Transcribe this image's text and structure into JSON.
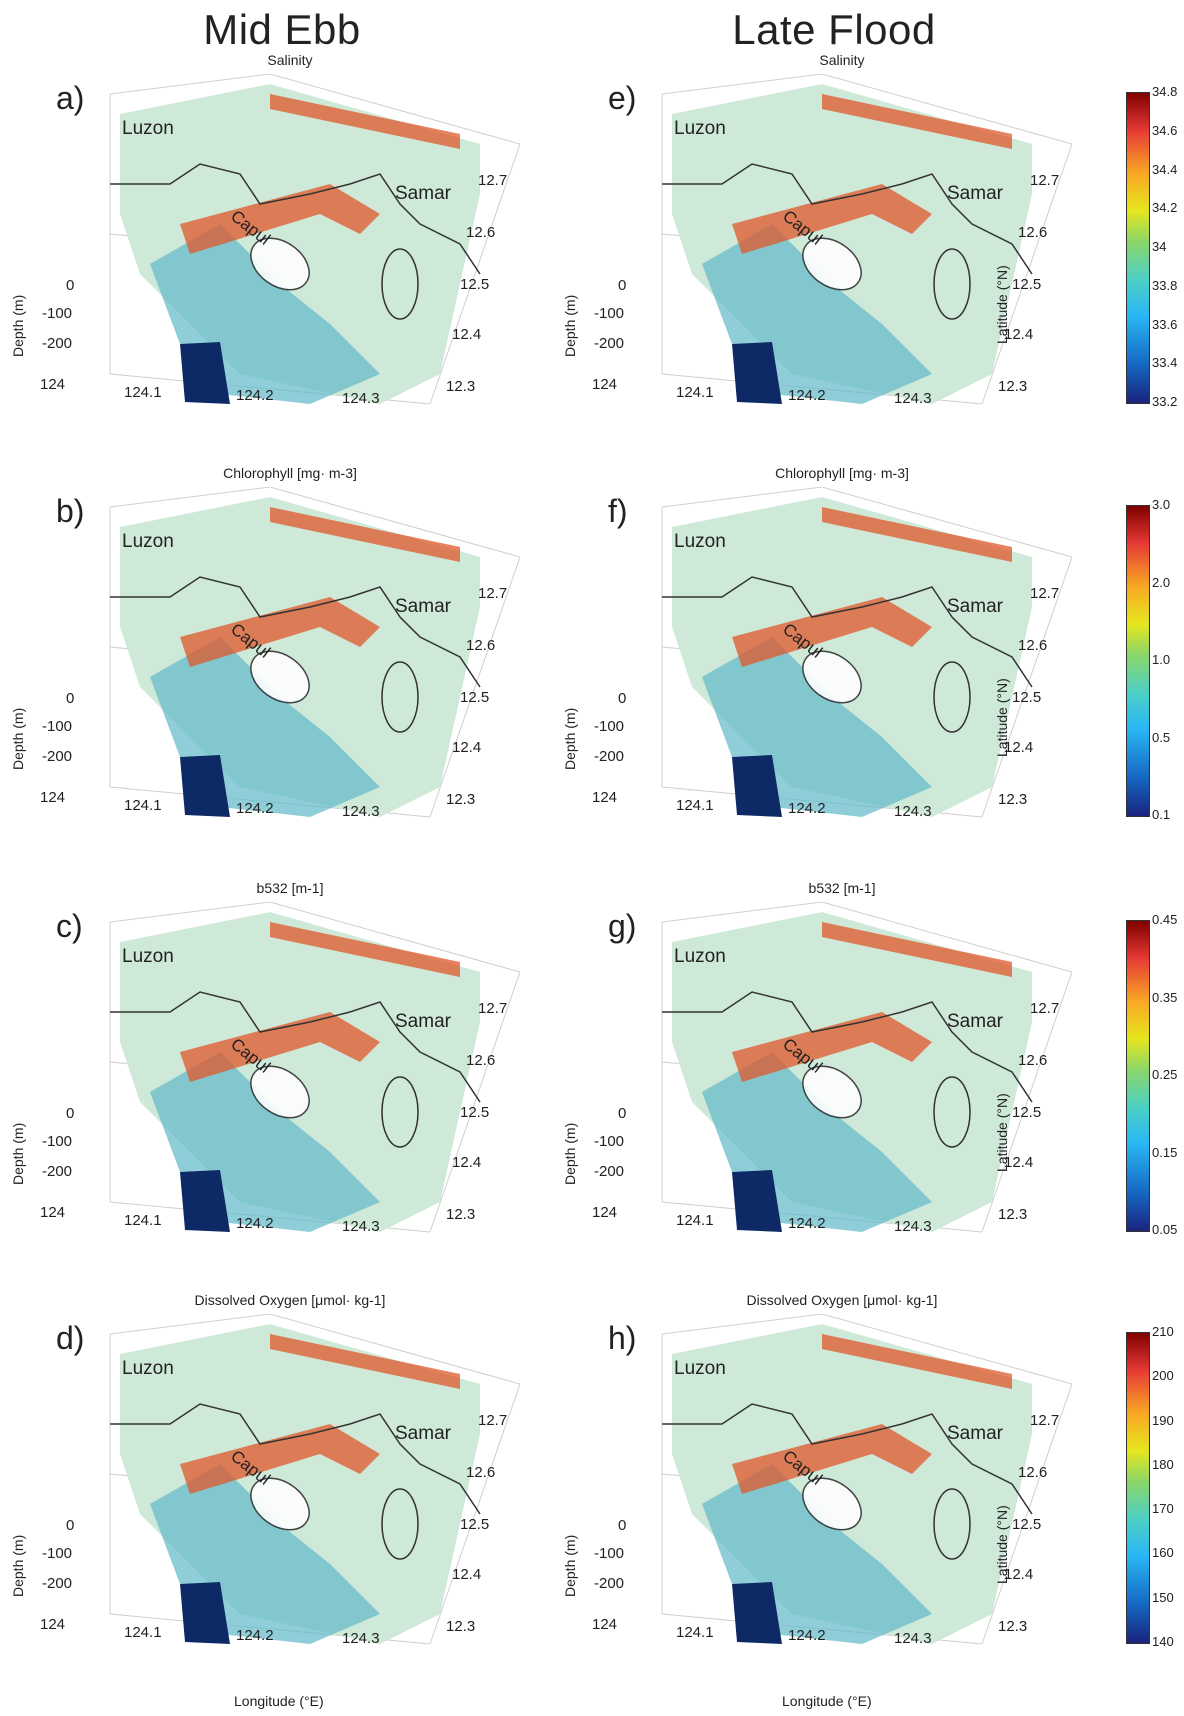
{
  "columns": {
    "left": "Mid Ebb",
    "right": "Late Flood"
  },
  "rows": [
    {
      "title": "Salinity",
      "left_letter": "a)",
      "right_letter": "e)"
    },
    {
      "title": "Chlorophyll [mg· m-3]",
      "left_letter": "b)",
      "right_letter": "f)"
    },
    {
      "title": "b532 [m-1]",
      "left_letter": "c)",
      "right_letter": "g)"
    },
    {
      "title": "Dissolved Oxygen [μmol· kg-1]",
      "left_letter": "d)",
      "right_letter": "h)"
    }
  ],
  "places": {
    "luzon": "Luzon",
    "samar": "Samar",
    "capul": "Capul"
  },
  "axes": {
    "depth_label": "Depth (m)",
    "depth_ticks": [
      "0",
      "-100",
      "-200"
    ],
    "lon_ticks": [
      "124",
      "124.1",
      "124.2",
      "124.3"
    ],
    "lat_ticks": [
      "12.7",
      "12.6",
      "12.5",
      "12.4",
      "12.3"
    ],
    "lat_label": "Latitude (°N)",
    "lon_label": "Longitude (°E)"
  },
  "colorbars": [
    {
      "ticks": [
        "34.8",
        "34.6",
        "34.4",
        "34.2",
        "34",
        "33.8",
        "33.6",
        "33.4",
        "33.2"
      ]
    },
    {
      "ticks": [
        "3.0",
        "2.0",
        "1.0",
        "0.5",
        "0.1"
      ]
    },
    {
      "ticks": [
        "0.45",
        "0.35",
        "0.25",
        "0.15",
        "0.05"
      ]
    },
    {
      "ticks": [
        "210",
        "200",
        "190",
        "180",
        "170",
        "160",
        "150",
        "140"
      ]
    }
  ],
  "colors": {
    "land": "#cfe9d8",
    "coast": "#333333",
    "deep": "#0d2a66"
  }
}
